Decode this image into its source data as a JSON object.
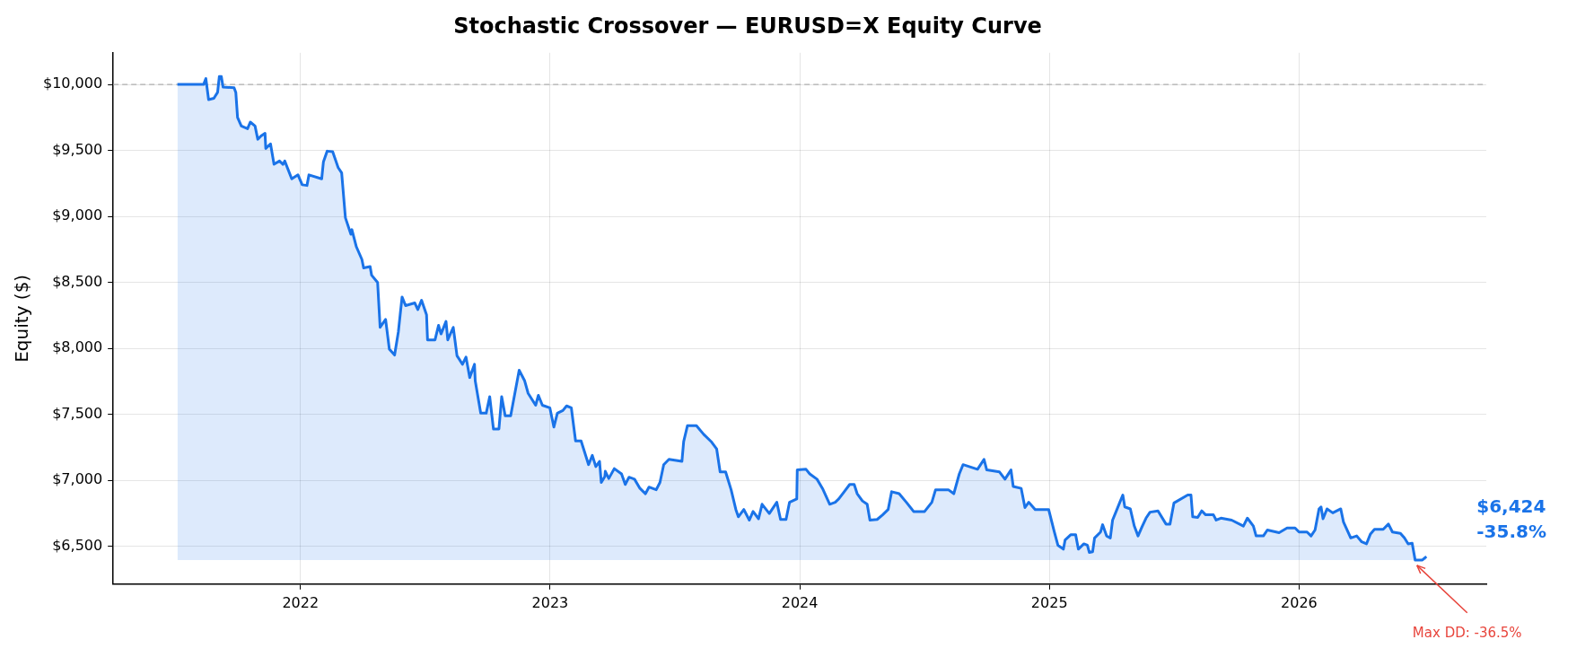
{
  "chart_data": {
    "type": "area",
    "title": "Stochastic Crossover — EURUSD=X Equity Curve",
    "ylabel": "Equity ($)",
    "xlim": [
      2021.25,
      2026.75
    ],
    "xticks": [
      2022,
      2023,
      2024,
      2025,
      2026
    ],
    "ylim": [
      6215,
      10240
    ],
    "yticks": [
      {
        "value": 6500,
        "label": "$6,500"
      },
      {
        "value": 7000,
        "label": "$7,000"
      },
      {
        "value": 7500,
        "label": "$7,500"
      },
      {
        "value": 8000,
        "label": "$8,000"
      },
      {
        "value": 8500,
        "label": "$8,500"
      },
      {
        "value": 9000,
        "label": "$9,000"
      },
      {
        "value": 9500,
        "label": "$9,500"
      },
      {
        "value": 10000,
        "label": "$10,000"
      }
    ],
    "grid": true,
    "legend": false,
    "ref_lines": [
      {
        "axis": "y",
        "value": 10000,
        "color": "#b0b0b0",
        "line_style": "dashed"
      }
    ],
    "annotations": [
      {
        "text": "$6,424\n-35.8%",
        "x": 2026.51,
        "y": 6424
      },
      {
        "text": "Max DD: -36.5%",
        "x": 2026.465,
        "y": 6398
      }
    ],
    "series": [
      {
        "color": "#1a73e8",
        "x": [
          2021.507,
          2021.612,
          2021.621,
          2021.632,
          2021.653,
          2021.668,
          2021.675,
          2021.683,
          2021.69,
          2021.734,
          2021.741,
          2021.748,
          2021.763,
          2021.788,
          2021.799,
          2021.818,
          2021.829,
          2021.842,
          2021.858,
          2021.861,
          2021.88,
          2021.894,
          2021.916,
          2021.93,
          2021.937,
          2021.965,
          2021.99,
          2022.007,
          2022.026,
          2022.034,
          2022.085,
          2022.092,
          2022.107,
          2022.129,
          2022.151,
          2022.165,
          2022.18,
          2022.202,
          2022.206,
          2022.224,
          2022.246,
          2022.253,
          2022.279,
          2022.285,
          2022.309,
          2022.319,
          2022.341,
          2022.356,
          2022.377,
          2022.392,
          2022.407,
          2022.421,
          2022.458,
          2022.47,
          2022.485,
          2022.505,
          2022.509,
          2022.539,
          2022.553,
          2022.563,
          2022.583,
          2022.59,
          2022.612,
          2022.627,
          2022.649,
          2022.663,
          2022.678,
          2022.697,
          2022.7,
          2022.722,
          2022.744,
          2022.758,
          2022.773,
          2022.795,
          2022.806,
          2022.82,
          2022.842,
          2022.876,
          2022.898,
          2022.912,
          2022.942,
          2022.953,
          2022.969,
          2022.999,
          2023.015,
          2023.029,
          2023.051,
          2023.066,
          2023.085,
          2023.102,
          2023.124,
          2023.154,
          2023.169,
          2023.183,
          2023.198,
          2023.205,
          2023.219,
          2023.221,
          2023.235,
          2023.257,
          2023.286,
          2023.301,
          2023.316,
          2023.338,
          2023.36,
          2023.382,
          2023.396,
          2023.425,
          2023.44,
          2023.455,
          2023.476,
          2023.528,
          2023.535,
          2023.55,
          2023.586,
          2023.615,
          2023.645,
          2023.667,
          2023.681,
          2023.703,
          2023.725,
          2023.744,
          2023.754,
          2023.776,
          2023.798,
          2023.813,
          2023.835,
          2023.849,
          2023.878,
          2023.908,
          2023.923,
          2023.945,
          2023.959,
          2023.988,
          2023.99,
          2024.025,
          2024.04,
          2024.069,
          2024.091,
          2024.12,
          2024.142,
          2024.156,
          2024.178,
          2024.2,
          2024.218,
          2024.23,
          2024.251,
          2024.27,
          2024.281,
          2024.31,
          2024.332,
          2024.354,
          2024.368,
          2024.398,
          2024.427,
          2024.456,
          2024.5,
          2024.529,
          2024.544,
          2024.595,
          2024.617,
          2024.639,
          2024.654,
          2024.712,
          2024.738,
          2024.749,
          2024.8,
          2024.822,
          2024.846,
          2024.855,
          2024.887,
          2024.902,
          2024.917,
          2024.943,
          2024.997,
          2025.019,
          2025.034,
          2025.056,
          2025.063,
          2025.086,
          2025.105,
          2025.116,
          2025.138,
          2025.152,
          2025.16,
          2025.173,
          2025.181,
          2025.205,
          2025.213,
          2025.229,
          2025.244,
          2025.253,
          2025.265,
          2025.281,
          2025.294,
          2025.302,
          2025.324,
          2025.34,
          2025.355,
          2025.371,
          2025.387,
          2025.403,
          2025.435,
          2025.467,
          2025.483,
          2025.499,
          2025.554,
          2025.567,
          2025.574,
          2025.594,
          2025.61,
          2025.626,
          2025.657,
          2025.668,
          2025.687,
          2025.73,
          2025.777,
          2025.793,
          2025.817,
          2025.828,
          2025.857,
          2025.873,
          2025.92,
          2025.952,
          2025.984,
          2026.0,
          2026.032,
          2026.048,
          2026.064,
          2026.08,
          2026.088,
          2026.096,
          2026.112,
          2026.135,
          2026.167,
          2026.178,
          2026.207,
          2026.231,
          2026.251,
          2026.27,
          2026.286,
          2026.302,
          2026.337,
          2026.358,
          2026.374,
          2026.406,
          2026.422,
          2026.437,
          2026.453,
          2026.465,
          2026.494,
          2026.51
        ],
        "values": [
          10000,
          10000,
          10045,
          9885,
          9895,
          9940,
          10060,
          10060,
          9980,
          9975,
          9940,
          9750,
          9685,
          9665,
          9715,
          9685,
          9585,
          9610,
          9630,
          9515,
          9550,
          9395,
          9420,
          9395,
          9420,
          9285,
          9315,
          9240,
          9235,
          9315,
          9285,
          9415,
          9495,
          9490,
          9370,
          9330,
          8990,
          8865,
          8900,
          8770,
          8675,
          8610,
          8620,
          8555,
          8500,
          8160,
          8220,
          7995,
          7950,
          8125,
          8390,
          8325,
          8345,
          8295,
          8365,
          8255,
          8065,
          8065,
          8175,
          8110,
          8205,
          8065,
          8160,
          7945,
          7880,
          7935,
          7780,
          7880,
          7755,
          7510,
          7510,
          7635,
          7390,
          7390,
          7635,
          7490,
          7490,
          7835,
          7755,
          7660,
          7570,
          7645,
          7570,
          7550,
          7405,
          7510,
          7530,
          7565,
          7550,
          7300,
          7300,
          7120,
          7190,
          7105,
          7145,
          6985,
          7030,
          7070,
          7015,
          7090,
          7050,
          6970,
          7025,
          7010,
          6940,
          6900,
          6950,
          6930,
          6985,
          7120,
          7160,
          7145,
          7295,
          7415,
          7415,
          7350,
          7295,
          7240,
          7065,
          7065,
          6930,
          6780,
          6725,
          6780,
          6700,
          6765,
          6710,
          6820,
          6750,
          6835,
          6705,
          6705,
          6835,
          6860,
          7080,
          7085,
          7050,
          7010,
          6940,
          6820,
          6835,
          6860,
          6915,
          6970,
          6970,
          6900,
          6845,
          6820,
          6700,
          6705,
          6740,
          6780,
          6915,
          6900,
          6835,
          6765,
          6765,
          6835,
          6930,
          6930,
          6900,
          7050,
          7120,
          7085,
          7160,
          7080,
          7065,
          7010,
          7080,
          6955,
          6940,
          6795,
          6835,
          6780,
          6780,
          6615,
          6510,
          6480,
          6550,
          6590,
          6590,
          6480,
          6520,
          6510,
          6455,
          6460,
          6565,
          6610,
          6665,
          6580,
          6565,
          6700,
          6755,
          6830,
          6890,
          6800,
          6785,
          6655,
          6580,
          6650,
          6715,
          6760,
          6770,
          6670,
          6670,
          6830,
          6890,
          6890,
          6725,
          6720,
          6770,
          6740,
          6740,
          6700,
          6715,
          6700,
          6655,
          6715,
          6655,
          6580,
          6580,
          6625,
          6605,
          6640,
          6640,
          6610,
          6610,
          6580,
          6625,
          6785,
          6800,
          6710,
          6785,
          6755,
          6785,
          6685,
          6565,
          6580,
          6535,
          6520,
          6595,
          6630,
          6630,
          6670,
          6610,
          6600,
          6565,
          6520,
          6525,
          6398,
          6398,
          6424
        ]
      }
    ]
  }
}
